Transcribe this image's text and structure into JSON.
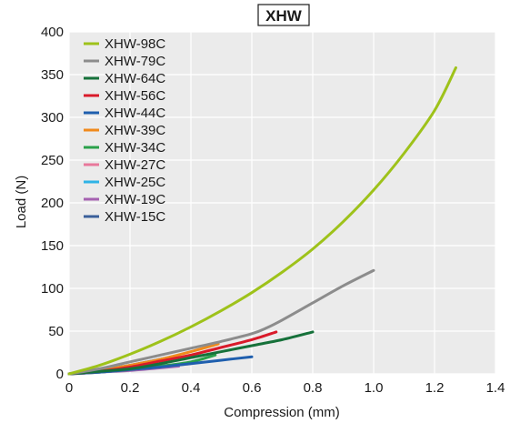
{
  "chart_data": {
    "type": "line",
    "title": "XHW",
    "xlabel": "Compression (mm)",
    "ylabel": "Load (N)",
    "xlim": [
      0,
      1.4
    ],
    "ylim": [
      0,
      400
    ],
    "x_ticks": [
      0,
      0.2,
      0.4,
      0.6,
      0.8,
      1.0,
      1.2,
      1.4
    ],
    "x_tick_labels": [
      "0",
      "0.2",
      "0.4",
      "0.6",
      "0.8",
      "1.0",
      "1.2",
      "1.4"
    ],
    "y_ticks": [
      0,
      50,
      100,
      150,
      200,
      250,
      300,
      350,
      400
    ],
    "y_tick_labels": [
      "0",
      "50",
      "100",
      "150",
      "200",
      "250",
      "300",
      "350",
      "400"
    ],
    "grid": true,
    "legend_position": "top-left",
    "series": [
      {
        "name": "XHW-98C",
        "color": "#9ec21a",
        "x": [
          0,
          0.1,
          0.2,
          0.3,
          0.4,
          0.5,
          0.6,
          0.7,
          0.8,
          0.9,
          1.0,
          1.1,
          1.2,
          1.27
        ],
        "y": [
          0,
          10,
          23,
          38,
          55,
          74,
          95,
          119,
          146,
          178,
          215,
          258,
          308,
          358
        ]
      },
      {
        "name": "XHW-79C",
        "color": "#8c8c8c",
        "x": [
          0,
          0.1,
          0.2,
          0.3,
          0.4,
          0.5,
          0.6,
          0.65,
          0.7,
          0.8,
          0.9,
          1.0
        ],
        "y": [
          0,
          6,
          14,
          22,
          30,
          38,
          47,
          54,
          63,
          83,
          103,
          121
        ]
      },
      {
        "name": "XHW-64C",
        "color": "#16713a",
        "x": [
          0,
          0.2,
          0.3,
          0.4,
          0.5,
          0.6,
          0.7,
          0.8
        ],
        "y": [
          0,
          6,
          12,
          19,
          26,
          33,
          40,
          49
        ]
      },
      {
        "name": "XHW-56C",
        "color": "#d91a2a",
        "x": [
          0,
          0.1,
          0.2,
          0.3,
          0.4,
          0.5,
          0.6,
          0.68
        ],
        "y": [
          0,
          3,
          8,
          15,
          22,
          31,
          40,
          49
        ]
      },
      {
        "name": "XHW-44C",
        "color": "#1f5fae",
        "x": [
          0,
          0.1,
          0.2,
          0.3,
          0.4,
          0.5,
          0.6
        ],
        "y": [
          0,
          2,
          5,
          8,
          12,
          16,
          20
        ]
      },
      {
        "name": "XHW-39C",
        "color": "#f08a1c",
        "x": [
          0,
          0.1,
          0.2,
          0.3,
          0.4,
          0.49
        ],
        "y": [
          0,
          4,
          10,
          17,
          26,
          35
        ]
      },
      {
        "name": "XHW-34C",
        "color": "#2aa04a",
        "x": [
          0,
          0.1,
          0.2,
          0.3,
          0.4,
          0.48
        ],
        "y": [
          0,
          2,
          5,
          9,
          14,
          22
        ]
      },
      {
        "name": "XHW-27C",
        "color": "#e8789b",
        "x": [
          0,
          0.1,
          0.2,
          0.3,
          0.4
        ],
        "y": [
          0,
          2,
          5,
          8,
          12
        ]
      },
      {
        "name": "XHW-25C",
        "color": "#2fb3e6",
        "x": [
          0,
          0.1,
          0.2,
          0.28
        ],
        "y": [
          0,
          3,
          8,
          15
        ]
      },
      {
        "name": "XHW-19C",
        "color": "#a561b0",
        "x": [
          0,
          0.1,
          0.2,
          0.3,
          0.36
        ],
        "y": [
          0,
          2,
          4,
          7,
          9
        ]
      },
      {
        "name": "XHW-15C",
        "color": "#3a5f9a",
        "x": [
          0,
          0.1,
          0.2,
          0.3,
          0.35
        ],
        "y": [
          0,
          4,
          10,
          17,
          21
        ]
      }
    ]
  }
}
